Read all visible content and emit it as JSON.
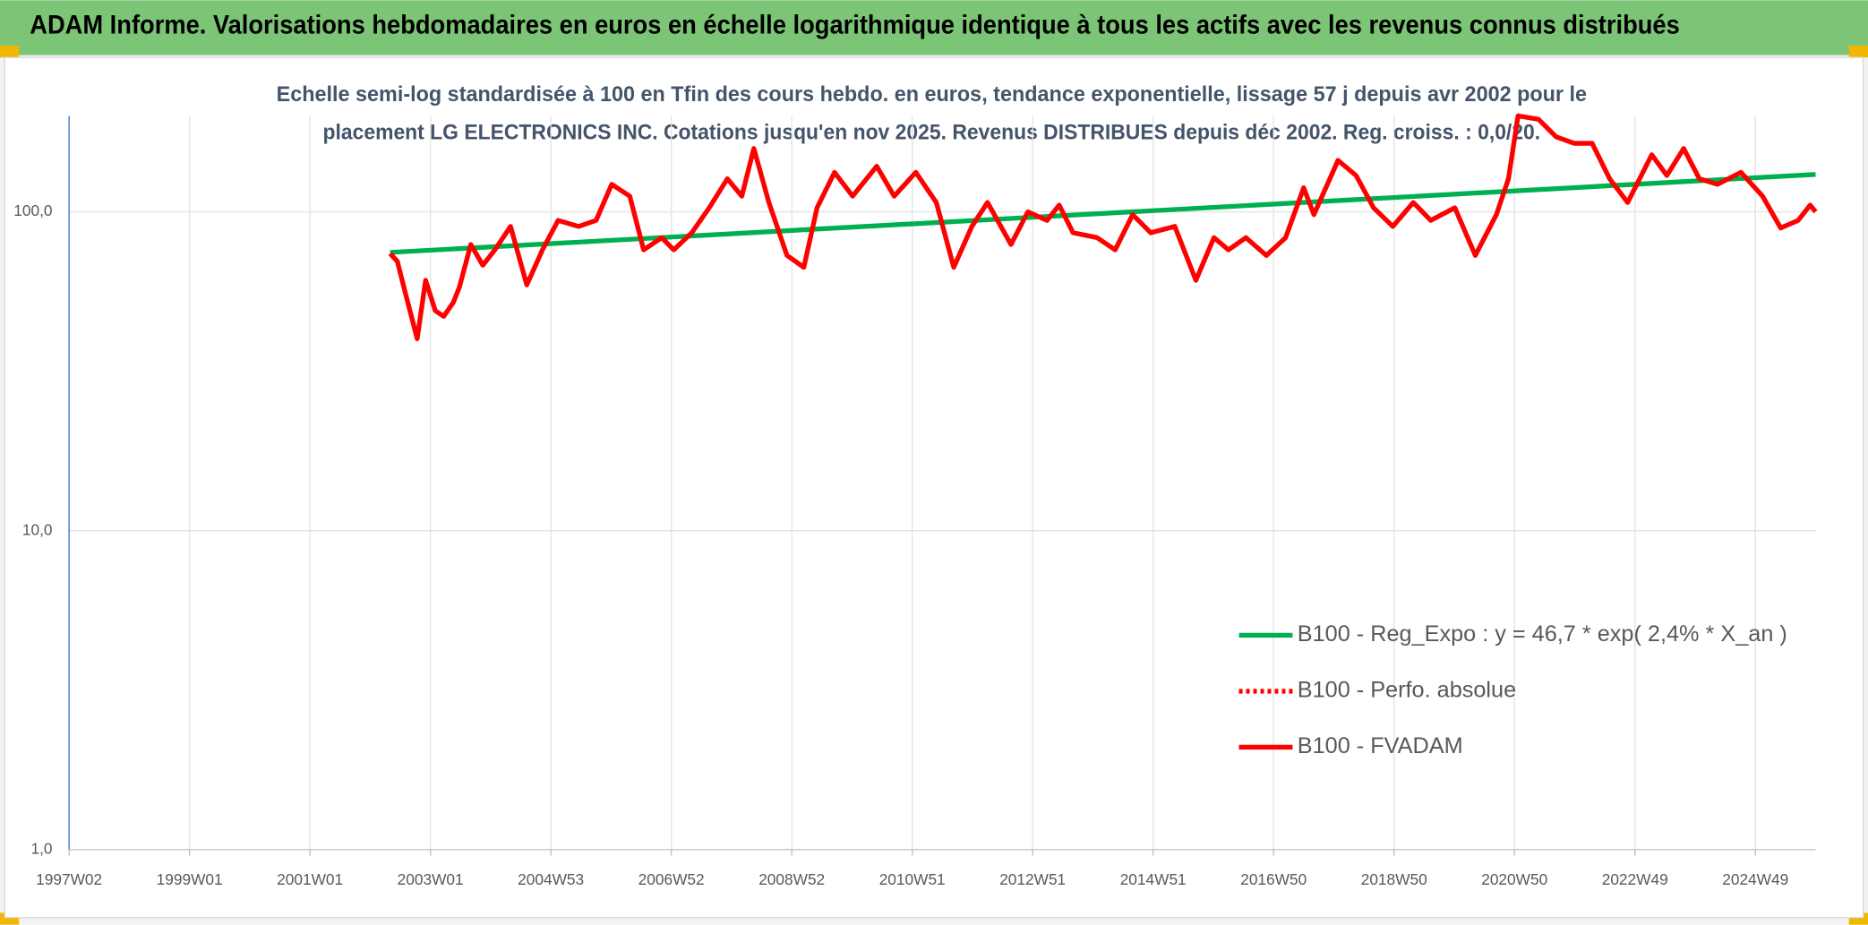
{
  "header": {
    "title": "ADAM Informe. Valorisations hebdomadaires en euros en échelle logarithmique identique à tous les actifs avec les revenus connus distribués"
  },
  "chart_data": {
    "type": "line",
    "subtitle": [
      "Echelle semi-log standardisée à 100 en Tfin des cours hebdo. en euros, tendance exponentielle, lissage 57 j depuis avr 2002 pour le",
      "placement LG ELECTRONICS INC. Cotations jusqu'en nov 2025. Revenus DISTRIBUES depuis déc 2002. Reg. croiss. : 0,0/20."
    ],
    "log_y": true,
    "xgrid": true,
    "ygrid": true,
    "legend": "right",
    "xlim": [
      1997.0,
      2026.0
    ],
    "xticks": [
      {
        "value": 1997,
        "label": "1997W02"
      },
      {
        "value": 1999,
        "label": "1999W01"
      },
      {
        "value": 2001,
        "label": "2001W01"
      },
      {
        "value": 2003,
        "label": "2003W01"
      },
      {
        "value": 2005,
        "label": "2004W53"
      },
      {
        "value": 2007,
        "label": "2006W52"
      },
      {
        "value": 2009,
        "label": "2008W52"
      },
      {
        "value": 2011,
        "label": "2010W51"
      },
      {
        "value": 2013,
        "label": "2012W51"
      },
      {
        "value": 2015,
        "label": "2014W51"
      },
      {
        "value": 2017,
        "label": "2016W50"
      },
      {
        "value": 2019,
        "label": "2018W50"
      },
      {
        "value": 2021,
        "label": "2020W50"
      },
      {
        "value": 2023,
        "label": "2022W49"
      },
      {
        "value": 2025,
        "label": "2024W49"
      }
    ],
    "ylim": [
      1,
      200
    ],
    "yticks": [
      {
        "value": 1,
        "label": "1,0"
      },
      {
        "value": 10,
        "label": "10,0"
      },
      {
        "value": 100,
        "label": "100,0"
      }
    ],
    "series": [
      {
        "name": "B100 - Reg_Expo : y = 46,7 * exp( 2,4% *  X_an )",
        "color": "#00b050",
        "style": "solid",
        "x": [
          2002.33,
          2026.0
        ],
        "values": [
          74.6,
          131
        ]
      },
      {
        "name": "B100 - Perfo. absolue",
        "color": "#ff0000",
        "style": "dotted",
        "x": [],
        "values": []
      },
      {
        "name": "B100 - FVADAM",
        "color": "#ff0000",
        "style": "solid",
        "x": [
          2002.33,
          2002.45,
          2002.58,
          2002.78,
          2002.92,
          2003.08,
          2003.22,
          2003.38,
          2003.48,
          2003.67,
          2003.87,
          2004.07,
          2004.33,
          2004.6,
          2004.86,
          2005.12,
          2005.46,
          2005.75,
          2006.01,
          2006.31,
          2006.54,
          2006.84,
          2007.04,
          2007.34,
          2007.63,
          2007.93,
          2008.17,
          2008.37,
          2008.62,
          2008.92,
          2009.2,
          2009.42,
          2009.71,
          2010.01,
          2010.41,
          2010.7,
          2011.06,
          2011.4,
          2011.69,
          2011.99,
          2012.25,
          2012.64,
          2012.92,
          2013.24,
          2013.44,
          2013.67,
          2014.07,
          2014.37,
          2014.66,
          2014.96,
          2015.36,
          2015.71,
          2016.01,
          2016.25,
          2016.54,
          2016.88,
          2017.2,
          2017.5,
          2017.67,
          2018.07,
          2018.37,
          2018.66,
          2018.98,
          2019.32,
          2019.61,
          2020.01,
          2020.35,
          2020.7,
          2020.9,
          2021.06,
          2021.4,
          2021.69,
          2021.99,
          2022.29,
          2022.58,
          2022.88,
          2023.28,
          2023.53,
          2023.81,
          2024.07,
          2024.37,
          2024.76,
          2025.12,
          2025.42,
          2025.71,
          2025.91,
          2026.0
        ],
        "values": [
          74,
          70,
          56,
          40,
          61,
          49,
          47,
          52,
          58,
          79,
          68,
          76,
          90,
          59,
          76,
          94,
          90,
          94,
          122,
          112,
          76,
          83,
          76,
          86,
          103,
          127,
          112,
          158,
          107,
          73,
          67,
          103,
          133,
          112,
          139,
          112,
          133,
          107,
          67,
          90,
          107,
          79,
          100,
          94,
          105,
          86,
          83,
          76,
          98,
          86,
          90,
          61,
          83,
          76,
          83,
          73,
          83,
          119,
          98,
          145,
          130,
          103,
          90,
          107,
          94,
          103,
          73,
          98,
          127,
          200,
          195,
          172,
          164,
          164,
          127,
          107,
          151,
          130,
          158,
          127,
          122,
          133,
          112,
          89,
          94,
          105,
          100
        ]
      }
    ]
  }
}
